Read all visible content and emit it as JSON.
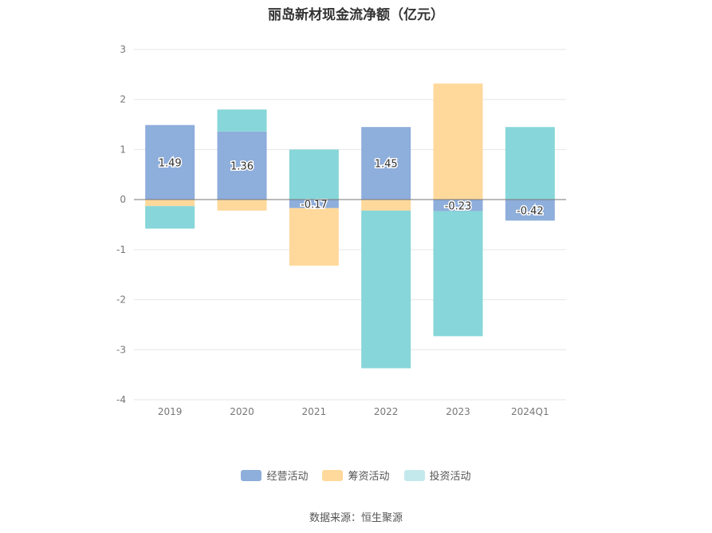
{
  "chart_data": {
    "type": "bar",
    "stacked": true,
    "title": "丽岛新材现金流净额（亿元）",
    "xlabel": "",
    "ylabel": "",
    "ylim": [
      -4,
      3
    ],
    "y_ticks": [
      "3",
      "2",
      "1",
      "0",
      "-1",
      "-2",
      "-3",
      "-4"
    ],
    "categories": [
      "2019",
      "2020",
      "2021",
      "2022",
      "2023",
      "2024Q1"
    ],
    "series": [
      {
        "name": "经营活动",
        "color": "#8eaedb",
        "values": [
          1.49,
          1.36,
          -0.17,
          1.45,
          -0.23,
          -0.42
        ]
      },
      {
        "name": "筹资活动",
        "color": "#ffd99c",
        "values": [
          -0.13,
          -0.22,
          -1.15,
          -0.22,
          2.32,
          0.0
        ]
      },
      {
        "name": "投资活动",
        "color": "#87d6d9",
        "values": [
          -0.45,
          0.44,
          1.0,
          -3.15,
          -2.5,
          1.45
        ]
      }
    ],
    "data_labels": [
      "1.49",
      "1.36",
      "-0.17",
      "1.45",
      "-0.23",
      "-0.42"
    ],
    "grid": true,
    "legend_position": "bottom"
  },
  "legend": [
    {
      "label": "经营活动",
      "color": "#8eaedb"
    },
    {
      "label": "筹资活动",
      "color": "#ffd99c"
    },
    {
      "label": "投资活动",
      "color": "#c3e9ec"
    }
  ],
  "source": "数据来源：恒生聚源"
}
